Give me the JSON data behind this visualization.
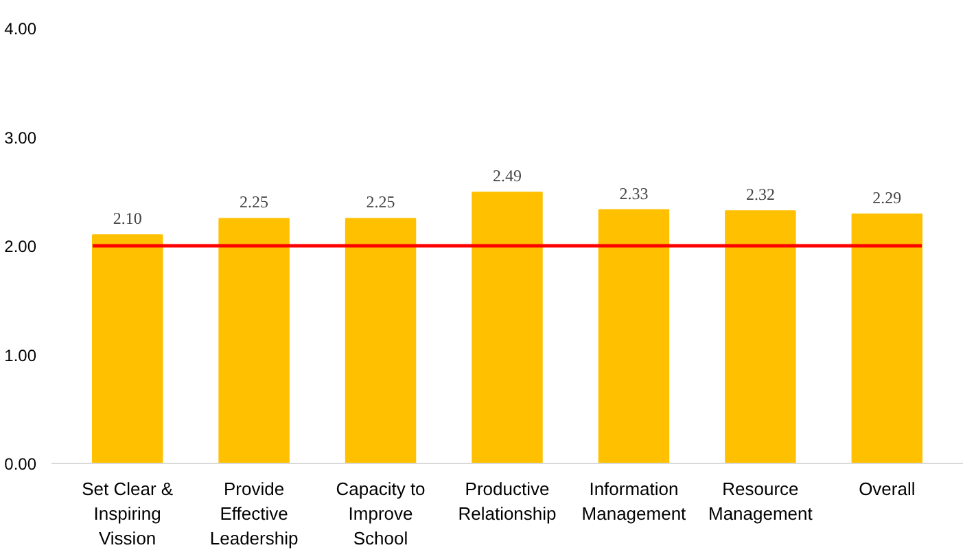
{
  "chart_data": {
    "type": "bar",
    "categories": [
      "Set Clear & Inspiring Vission",
      "Provide Effective Leadership",
      "Capacity to Improve School",
      "Productive Relationship",
      "Information Management",
      "Resource Management",
      "Overall"
    ],
    "values": [
      2.1,
      2.25,
      2.25,
      2.49,
      2.33,
      2.32,
      2.29
    ],
    "value_labels": [
      "2.10",
      "2.25",
      "2.25",
      "2.49",
      "2.33",
      "2.32",
      "2.29"
    ],
    "color": "#ffc000",
    "ylim": [
      0,
      4
    ],
    "yticks": [
      {
        "value": 0,
        "label": "0.00"
      },
      {
        "value": 1,
        "label": "1.00"
      },
      {
        "value": 2,
        "label": "2.00"
      },
      {
        "value": 3,
        "label": "3.00"
      },
      {
        "value": 4,
        "label": "4.00"
      }
    ],
    "ref_lines": [
      {
        "axis": "y",
        "value": 2,
        "color": "#ff0000",
        "line_style": "solid"
      }
    ],
    "grid": false
  }
}
